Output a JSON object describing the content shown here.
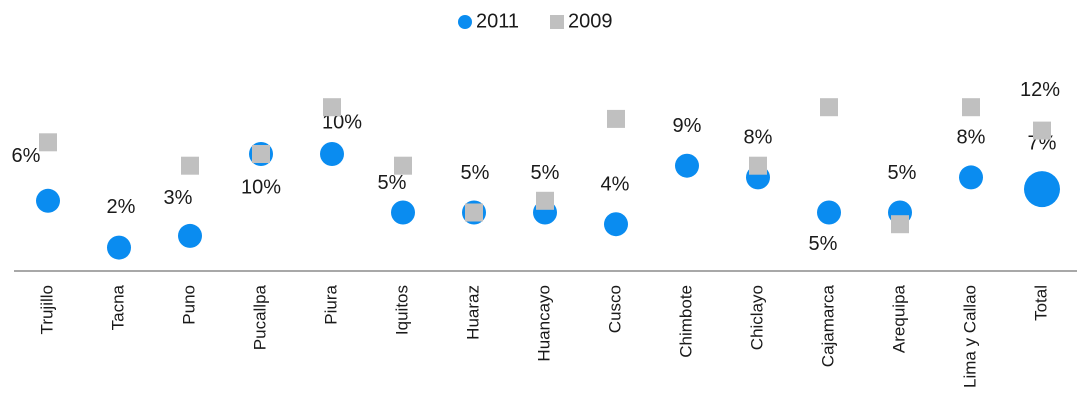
{
  "chart_data": {
    "type": "dot",
    "categories": [
      "Trujillo",
      "Tacna",
      "Puno",
      "Pucallpa",
      "Piura",
      "Iquitos",
      "Huaraz",
      "Huancayo",
      "Cusco",
      "Chimbote",
      "Chiclayo",
      "Cajamarca",
      "Arequipa",
      "Lima y Callao",
      "Total"
    ],
    "series": [
      {
        "name": "2011",
        "color": "#0a8cf0",
        "marker": "circle",
        "values": [
          6,
          2,
          3,
          10,
          10,
          5,
          5,
          5,
          4,
          9,
          8,
          5,
          5,
          8,
          7
        ],
        "value_labels": [
          "6%",
          "2%",
          "3%",
          "10%",
          "10%",
          "5%",
          "5%",
          "5%",
          "4%",
          "9%",
          "8%",
          "5%",
          "5%",
          "8%",
          "7%"
        ]
      },
      {
        "name": "2009",
        "color": "#c0c0c0",
        "marker": "square",
        "values": [
          11,
          null,
          9,
          10,
          14,
          9,
          5,
          6,
          13,
          null,
          9,
          14,
          4,
          14,
          12
        ],
        "value_labels": [
          null,
          null,
          null,
          null,
          null,
          null,
          null,
          null,
          null,
          null,
          null,
          null,
          null,
          null,
          "12%"
        ]
      }
    ],
    "ylim": [
      0,
      20
    ],
    "legend": "top"
  }
}
